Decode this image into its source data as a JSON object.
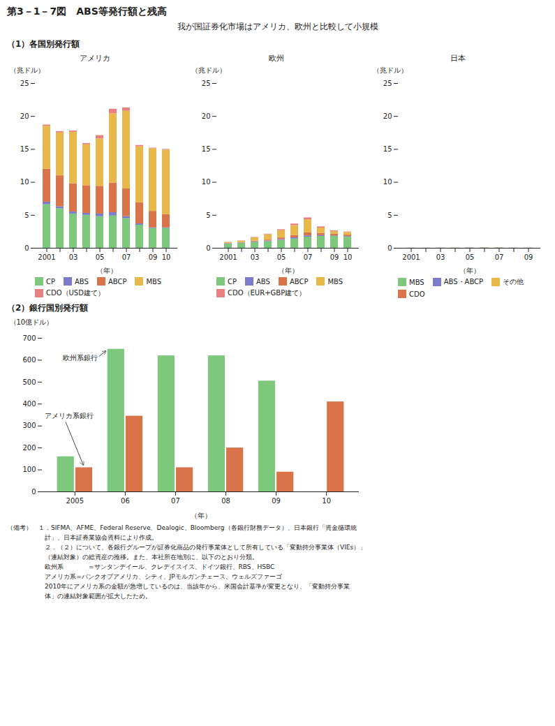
{
  "title": "第3－1－7図　ABS等発行額と残高",
  "subtitle": "我が国証券化市場はアメリカ、欧州と比較して小規模",
  "section1_title": "（1）各国別発行額",
  "section2_title": "（2）銀行国別発行額",
  "note": "（備考）　１．SIFMA、AFME、Federal Reserve、Dealogic、Bloomberg（各銀行財務データ）、日本銀行「資金循環統\n　　　　　　計」、日本証券業協会資料により作成。\n　　　　　　２．（２）について、各銀行グループが証券化商品の発行事業体として所有している「変動持分事業体（VIEs）」\n　　　　　　（連結対象）の総資産の推移。また、本社所在地別に、以下のとおり分類。\n　　　　　　欧州系　　　　=サンタンデイール、クレデイスイス、ドイツ銀行、RBS、HSBC\n　　　　　　アメリカ系=バンクオブアメリカ、シティ、JPモルガンチェース、ウェルズファーゴ\n　　　　　　2010年にアメリカ系の金額が急増しているのは、当該年から、米国会計基準が変更となり、「変動持分事業\n　　　　　　体」の連結対象範囲が拡大したため。",
  "chart_data": [
    {
      "type": "bar",
      "stacked": true,
      "title": "アメリカ",
      "xlabel": "（年）",
      "ylabel": "（兆ドル）",
      "categories": [
        "2001",
        null,
        "03",
        null,
        "05",
        null,
        "07",
        null,
        "09",
        "10"
      ],
      "series": [
        {
          "name": "CP",
          "color": "#7dc87d",
          "values": [
            6.6,
            6.0,
            5.2,
            5.0,
            4.8,
            4.9,
            4.5,
            3.5,
            3.0,
            3.0
          ]
        },
        {
          "name": "ABS",
          "color": "#7b7bcc",
          "values": [
            0.4,
            0.3,
            0.3,
            0.3,
            0.4,
            0.5,
            0.3,
            0.2,
            0.1,
            0.1
          ]
        },
        {
          "name": "ABCP",
          "color": "#d9734a",
          "values": [
            5.0,
            4.7,
            4.3,
            4.2,
            4.2,
            4.5,
            4.2,
            3.2,
            2.5,
            2.0
          ]
        },
        {
          "name": "MBS",
          "color": "#e8b84b",
          "values": [
            6.5,
            6.5,
            7.8,
            6.2,
            7.2,
            10.5,
            11.8,
            8.5,
            9.5,
            9.8
          ]
        },
        {
          "name": "CDO（USD建て）",
          "color": "#e88080",
          "values": [
            0.2,
            0.2,
            0.2,
            0.2,
            0.5,
            0.7,
            0.5,
            0.2,
            0.1,
            0.1
          ]
        }
      ],
      "ylim": [
        0,
        25
      ],
      "yticks": [
        0,
        5,
        10,
        15,
        20,
        25
      ],
      "grid": false,
      "legend": "bottom"
    },
    {
      "type": "bar",
      "stacked": true,
      "title": "欧州",
      "xlabel": "（年）",
      "ylabel": "（兆ドル）",
      "categories": [
        "2001",
        null,
        "03",
        null,
        "05",
        null,
        "07",
        null,
        "09",
        "10"
      ],
      "series": [
        {
          "name": "CP",
          "color": "#7dc87d",
          "values": [
            0.65,
            0.75,
            0.9,
            1.0,
            1.2,
            1.4,
            1.7,
            1.8,
            1.8,
            1.7
          ]
        },
        {
          "name": "ABS",
          "color": "#7b7bcc",
          "values": [
            0.04,
            0.05,
            0.08,
            0.1,
            0.12,
            0.18,
            0.18,
            0.12,
            0.08,
            0.08
          ]
        },
        {
          "name": "ABCP",
          "color": "#d9734a",
          "values": [
            0.08,
            0.08,
            0.12,
            0.15,
            0.25,
            0.35,
            0.45,
            0.35,
            0.25,
            0.22
          ]
        },
        {
          "name": "MBS",
          "color": "#e8b84b",
          "values": [
            0.1,
            0.2,
            0.5,
            0.8,
            1.1,
            1.5,
            2.0,
            0.8,
            0.4,
            0.4
          ]
        },
        {
          "name": "CDO（EUR+GBP建て）",
          "color": "#e88080",
          "values": [
            0.04,
            0.04,
            0.05,
            0.08,
            0.15,
            0.25,
            0.28,
            0.18,
            0.12,
            0.08
          ]
        }
      ],
      "ylim": [
        0,
        25
      ],
      "yticks": [
        0,
        5,
        10,
        15,
        20,
        25
      ],
      "grid": false,
      "legend": "bottom"
    },
    {
      "type": "bar",
      "stacked": true,
      "title": "日本",
      "xlabel": "（年）",
      "ylabel": "（兆ドル）",
      "categories": [
        "2001",
        null,
        "03",
        null,
        "05",
        null,
        "07",
        null,
        "09"
      ],
      "series": [
        {
          "name": "MBS",
          "color": "#7dc87d",
          "values": [
            0.02,
            0.02,
            0.03,
            0.03,
            0.04,
            0.04,
            0.04,
            0.03,
            0.03
          ]
        },
        {
          "name": "ABS・ABCP",
          "color": "#7b7bcc",
          "values": [
            0.005,
            0.005,
            0.01,
            0.01,
            0.01,
            0.01,
            0.01,
            0.005,
            0.005
          ]
        },
        {
          "name": "その他",
          "color": "#e8b84b",
          "values": [
            0.005,
            0.005,
            0.005,
            0.01,
            0.01,
            0.01,
            0.01,
            0.005,
            0.005
          ]
        },
        {
          "name": "CDO",
          "color": "#d9734a",
          "values": [
            0.005,
            0.005,
            0.005,
            0.01,
            0.01,
            0.01,
            0.01,
            0.005,
            0.005
          ]
        }
      ],
      "ylim": [
        0,
        25
      ],
      "yticks": [
        0,
        5,
        10,
        15,
        20,
        25
      ],
      "grid": false,
      "legend": "bottom"
    },
    {
      "type": "bar",
      "stacked": false,
      "xlabel": "（年）",
      "ylabel": "（10億ドル）",
      "categories": [
        "2005",
        "06",
        "07",
        "08",
        "09",
        "10"
      ],
      "series": [
        {
          "name": "欧州系銀行",
          "color": "#7dc87d",
          "values": [
            160,
            650,
            620,
            620,
            505,
            0
          ]
        },
        {
          "name": "アメリカ系銀行",
          "color": "#d9734a",
          "values": [
            110,
            345,
            110,
            200,
            90,
            410
          ]
        }
      ],
      "ylim": [
        0,
        700
      ],
      "yticks": [
        0,
        100,
        200,
        300,
        400,
        500,
        600,
        700
      ],
      "grid": false
    }
  ]
}
